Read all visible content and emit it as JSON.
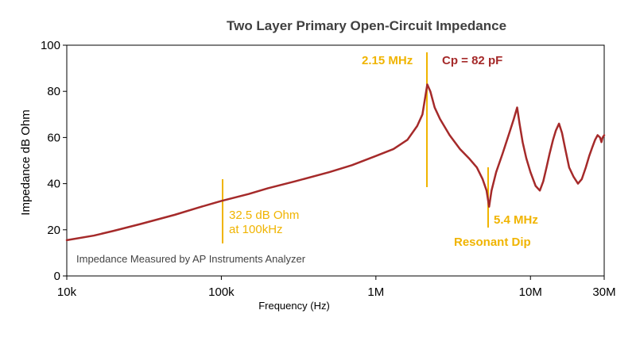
{
  "chart_data": {
    "type": "line",
    "title": "Two Layer Primary Open-Circuit Impedance",
    "xlabel": "Frequency (Hz)",
    "ylabel": "Impedance dB Ohm",
    "xscale": "log",
    "xlim": [
      10000,
      30000000
    ],
    "ylim": [
      0,
      100
    ],
    "x_ticks": [
      {
        "value": 10000,
        "label": "10k"
      },
      {
        "value": 100000,
        "label": "100k"
      },
      {
        "value": 1000000,
        "label": "1M"
      },
      {
        "value": 10000000,
        "label": "10M"
      },
      {
        "value": 30000000,
        "label": "30M"
      }
    ],
    "y_ticks": [
      {
        "value": 0,
        "label": "0"
      },
      {
        "value": 20,
        "label": "20"
      },
      {
        "value": 40,
        "label": "40"
      },
      {
        "value": 60,
        "label": "60"
      },
      {
        "value": 80,
        "label": "80"
      },
      {
        "value": 100,
        "label": "100"
      }
    ],
    "grid": false,
    "line_color": "#a52a2a",
    "annotation_color": "#f0b400",
    "series": [
      {
        "x": [
          10000,
          15000,
          20000,
          30000,
          50000,
          70000,
          100000,
          150000,
          200000,
          300000,
          500000,
          700000,
          1000000,
          1300000,
          1600000,
          1850000,
          2000000,
          2080000,
          2150000,
          2250000,
          2400000,
          2600000,
          3000000,
          3500000,
          4000000,
          4500000,
          4900000,
          5200000,
          5400000,
          5600000,
          6000000,
          6600000,
          7300000,
          7800000,
          8200000,
          8500000,
          8900000,
          9400000,
          10000000,
          10800000,
          11500000,
          12100000,
          12700000,
          13300000,
          14000000,
          14600000,
          15300000,
          16000000,
          16800000,
          17800000,
          19000000,
          20300000,
          21500000,
          22800000,
          24000000,
          25200000,
          26200000,
          27200000,
          28200000,
          28800000,
          29300000,
          30000000
        ],
        "y": [
          15.5,
          17.5,
          19.5,
          22.5,
          26.5,
          29.5,
          32.5,
          35.5,
          38,
          41,
          45,
          48,
          52,
          55,
          59,
          65,
          70,
          77,
          83,
          80,
          73,
          68,
          61,
          55,
          51,
          47,
          42,
          37,
          30,
          37,
          45,
          53,
          62,
          68,
          73,
          66,
          58,
          51,
          45,
          39,
          37,
          41,
          47,
          53,
          59,
          63,
          66,
          62,
          55,
          47,
          43,
          40,
          42,
          47,
          52,
          56,
          59,
          61,
          60,
          58,
          60,
          61
        ]
      }
    ],
    "annotations": [
      {
        "text": "2.15 MHz",
        "color": "#f0b400"
      },
      {
        "text": "Cp = 82 pF",
        "color": "#a52a2a"
      },
      {
        "text": "32.5 dB Ohm",
        "color": "#f0b400"
      },
      {
        "text": "at 100kHz",
        "color": "#f0b400"
      },
      {
        "text": "5.4 MHz",
        "color": "#f0b400"
      },
      {
        "text": "Resonant Dip",
        "color": "#f0b400"
      },
      {
        "text": "Impedance Measured by AP Instruments Analyzer",
        "color": "#444444"
      }
    ]
  }
}
